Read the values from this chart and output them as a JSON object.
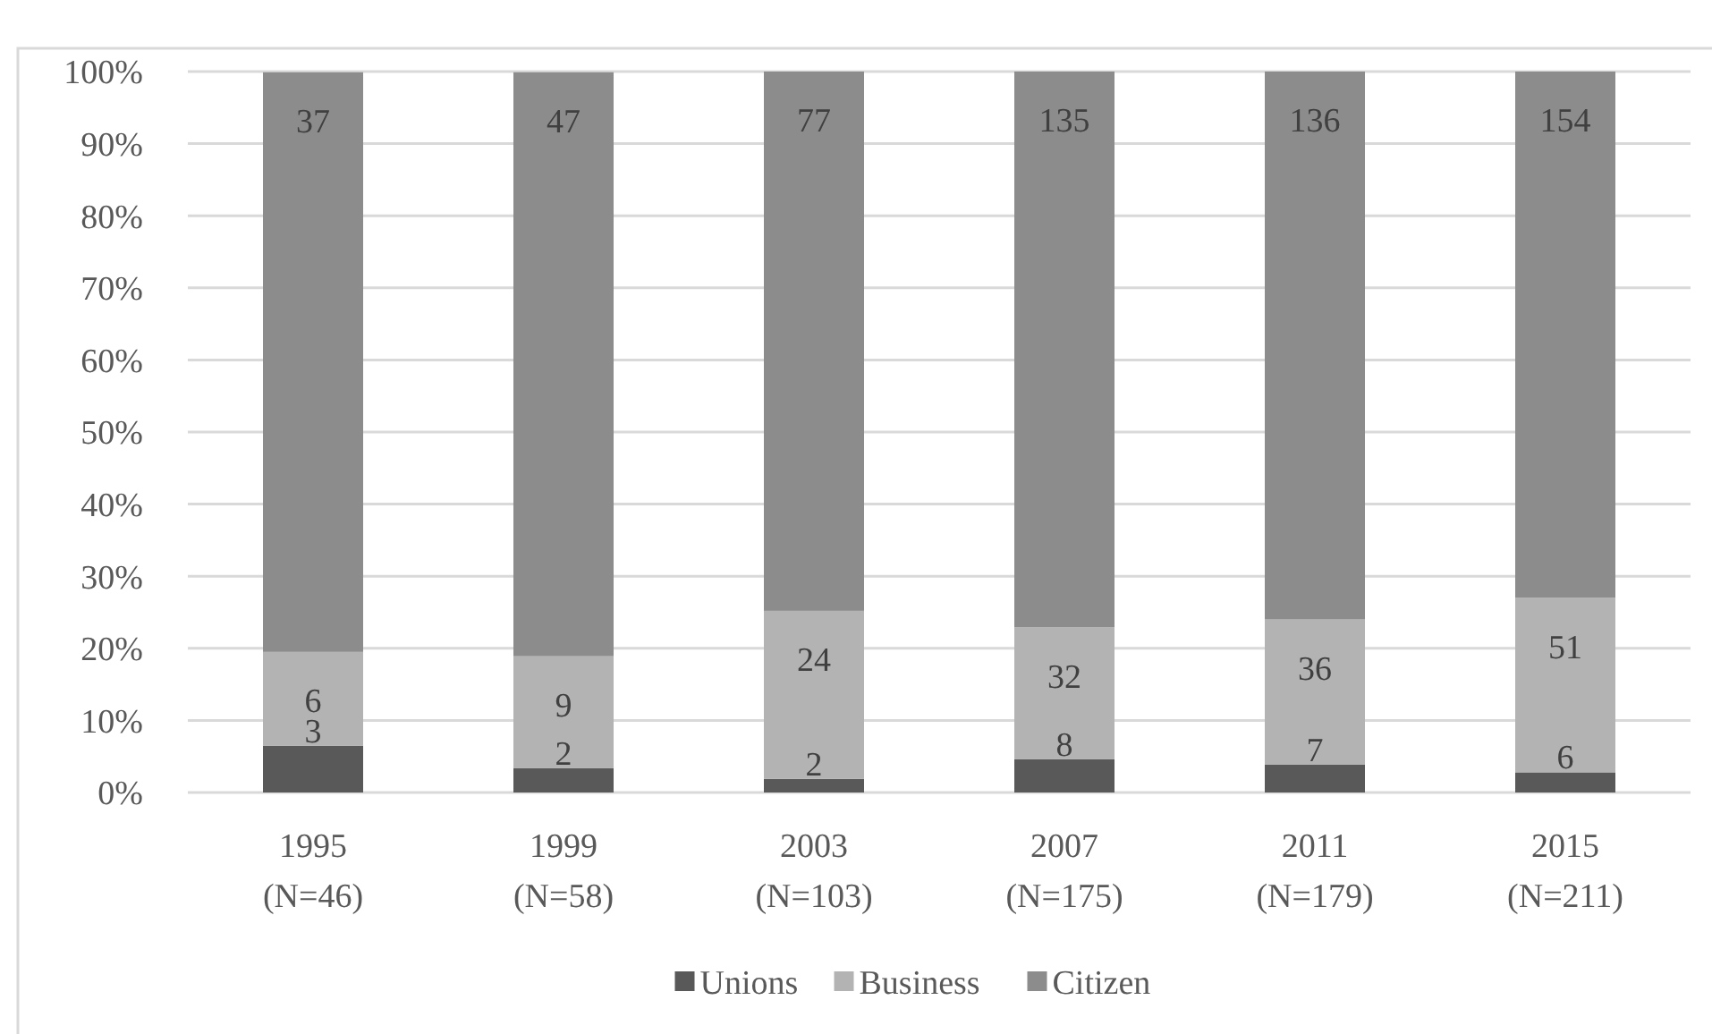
{
  "chart_data": {
    "type": "bar",
    "stacked": true,
    "categories": [
      "1995\n(N=46)",
      "1999\n(N=58)",
      "2003\n(N=103)",
      "2007\n(N=175)",
      "2011\n(N=179)",
      "2015\n(N=211)"
    ],
    "series": [
      {
        "name": "Unions",
        "color": "#595959",
        "values": [
          6.5,
          3.4,
          1.9,
          4.6,
          3.9,
          2.8
        ]
      },
      {
        "name": "Business",
        "color": "#b3b3b3",
        "values": [
          13.0,
          15.5,
          23.3,
          18.3,
          20.1,
          24.2
        ]
      },
      {
        "name": "Citizen",
        "color": "#8c8c8c",
        "values": [
          80.4,
          81.0,
          74.8,
          77.1,
          76.0,
          73.0
        ]
      }
    ],
    "annotations": [
      {
        "text": "3",
        "x": "1995\n(N=46)",
        "y": 6.5
      },
      {
        "text": "2",
        "x": "1999\n(N=58)",
        "y": 3.4
      },
      {
        "text": "2",
        "x": "2003\n(N=103)",
        "y": 1.9
      },
      {
        "text": "8",
        "x": "2007\n(N=175)",
        "y": 4.6
      },
      {
        "text": "7",
        "x": "2011\n(N=179)",
        "y": 3.9
      },
      {
        "text": "6",
        "x": "2015\n(N=211)",
        "y": 2.8
      },
      {
        "text": "6",
        "x": "1995\n(N=46)",
        "y": 19.5
      },
      {
        "text": "9",
        "x": "1999\n(N=58)",
        "y": 18.9
      },
      {
        "text": "24",
        "x": "2003\n(N=103)",
        "y": 25.2
      },
      {
        "text": "32",
        "x": "2007\n(N=175)",
        "y": 22.9
      },
      {
        "text": "36",
        "x": "2011\n(N=179)",
        "y": 24.0
      },
      {
        "text": "51",
        "x": "2015\n(N=211)",
        "y": 27.0
      },
      {
        "text": "37",
        "x": "1995\n(N=46)",
        "y": 99.9
      },
      {
        "text": "47",
        "x": "1999\n(N=58)",
        "y": 99.9
      },
      {
        "text": "77",
        "x": "2003\n(N=103)",
        "y": 100
      },
      {
        "text": "135",
        "x": "2007\n(N=175)",
        "y": 100
      },
      {
        "text": "136",
        "x": "2011\n(N=179)",
        "y": 100
      },
      {
        "text": "154",
        "x": "2015\n(N=211)",
        "y": 100
      }
    ],
    "ylim": [
      0,
      100
    ],
    "yticks": [
      {
        "value": 0,
        "label": "0%"
      },
      {
        "value": 10,
        "label": "10%"
      },
      {
        "value": 20,
        "label": "20%"
      },
      {
        "value": 30,
        "label": "30%"
      },
      {
        "value": 40,
        "label": "40%"
      },
      {
        "value": 50,
        "label": "50%"
      },
      {
        "value": 60,
        "label": "60%"
      },
      {
        "value": 70,
        "label": "70%"
      },
      {
        "value": 80,
        "label": "80%"
      },
      {
        "value": 90,
        "label": "90%"
      },
      {
        "value": 100,
        "label": "100%"
      }
    ],
    "grid": "y",
    "legend": "bottom"
  }
}
